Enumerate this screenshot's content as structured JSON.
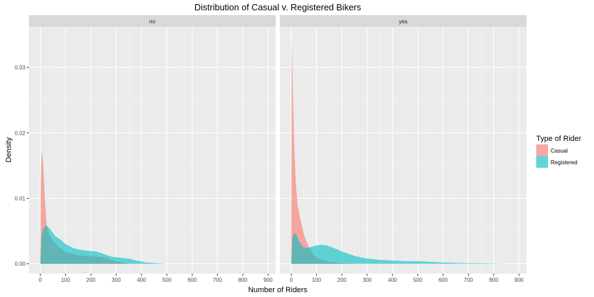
{
  "chart_data": {
    "type": "area",
    "title": "Distribution of Casual v. Registered Bikers",
    "xlabel": "Number of Riders",
    "ylabel": "Density",
    "x_ticks": [
      0,
      100,
      200,
      300,
      400,
      500,
      600,
      700,
      800,
      900
    ],
    "y_ticks": [
      0.0,
      0.01,
      0.02,
      0.03
    ],
    "y_tick_labels": [
      "0.00",
      "0.01",
      "0.02",
      "0.03"
    ],
    "xlim": [
      -45,
      930
    ],
    "ylim": [
      -0.0015,
      0.0362
    ],
    "grid": true,
    "legend": {
      "title": "Type of Rider",
      "position": "right",
      "entries": [
        {
          "name": "Casual",
          "color": "#F8766D"
        },
        {
          "name": "Registered",
          "color": "#00BFC4"
        }
      ]
    },
    "panels": [
      {
        "label": "no",
        "series": [
          {
            "name": "Casual",
            "color": "#F8766D",
            "points": [
              [
                0,
                0.0
              ],
              [
                2,
                0.012
              ],
              [
                5,
                0.0165
              ],
              [
                8,
                0.0171
              ],
              [
                12,
                0.015
              ],
              [
                18,
                0.01
              ],
              [
                25,
                0.006
              ],
              [
                35,
                0.0045
              ],
              [
                50,
                0.0035
              ],
              [
                75,
                0.0025
              ],
              [
                100,
                0.0018
              ],
              [
                150,
                0.0013
              ],
              [
                200,
                0.0012
              ],
              [
                250,
                0.001
              ],
              [
                280,
                0.0006
              ],
              [
                320,
                0.0002
              ],
              [
                350,
                0.0
              ]
            ]
          },
          {
            "name": "Registered",
            "color": "#00BFC4",
            "points": [
              [
                0,
                0.0
              ],
              [
                5,
                0.004
              ],
              [
                10,
                0.0052
              ],
              [
                20,
                0.0058
              ],
              [
                30,
                0.0057
              ],
              [
                45,
                0.005
              ],
              [
                60,
                0.0042
              ],
              [
                80,
                0.0037
              ],
              [
                100,
                0.003
              ],
              [
                130,
                0.0024
              ],
              [
                150,
                0.0022
              ],
              [
                180,
                0.002
              ],
              [
                220,
                0.0019
              ],
              [
                250,
                0.0015
              ],
              [
                280,
                0.0011
              ],
              [
                320,
                0.0009
              ],
              [
                350,
                0.0008
              ],
              [
                380,
                0.0005
              ],
              [
                420,
                0.0002
              ],
              [
                480,
                5e-05
              ],
              [
                500,
                0.0
              ]
            ]
          }
        ]
      },
      {
        "label": "yes",
        "series": [
          {
            "name": "Casual",
            "color": "#F8766D",
            "points": [
              [
                0,
                0.0
              ],
              [
                2,
                0.0345
              ],
              [
                4,
                0.031
              ],
              [
                8,
                0.024
              ],
              [
                12,
                0.018
              ],
              [
                18,
                0.0125
              ],
              [
                25,
                0.009
              ],
              [
                35,
                0.007
              ],
              [
                50,
                0.0045
              ],
              [
                70,
                0.0025
              ],
              [
                90,
                0.0013
              ],
              [
                110,
                0.0007
              ],
              [
                150,
                0.0003
              ],
              [
                200,
                0.0001
              ],
              [
                250,
                0.0
              ]
            ]
          },
          {
            "name": "Registered",
            "color": "#00BFC4",
            "points": [
              [
                0,
                0.0
              ],
              [
                5,
                0.004
              ],
              [
                12,
                0.0047
              ],
              [
                20,
                0.0045
              ],
              [
                30,
                0.0035
              ],
              [
                45,
                0.0026
              ],
              [
                60,
                0.0024
              ],
              [
                80,
                0.0026
              ],
              [
                100,
                0.0028
              ],
              [
                120,
                0.0029
              ],
              [
                140,
                0.0028
              ],
              [
                170,
                0.0024
              ],
              [
                200,
                0.0019
              ],
              [
                250,
                0.0012
              ],
              [
                300,
                0.0008
              ],
              [
                350,
                0.0006
              ],
              [
                400,
                0.0005
              ],
              [
                450,
                0.0004
              ],
              [
                500,
                0.0004
              ],
              [
                550,
                0.0003
              ],
              [
                600,
                0.0002
              ],
              [
                700,
                0.0001
              ],
              [
                800,
                5e-05
              ],
              [
                850,
                0.0
              ]
            ]
          }
        ]
      }
    ]
  }
}
